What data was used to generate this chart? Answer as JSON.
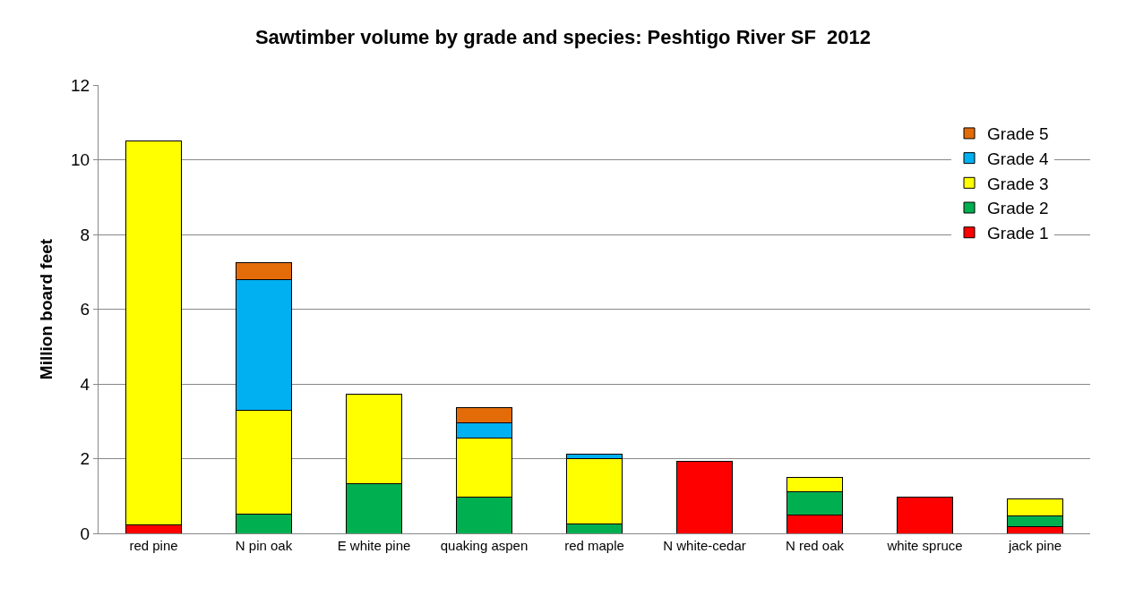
{
  "chart_data": {
    "type": "bar",
    "title": "Sawtimber volume by grade and species: Peshtigo River SF  2012",
    "ylabel": "Million board feet",
    "categories": [
      "red pine",
      "N pin oak",
      "E white pine",
      "quaking aspen",
      "red maple",
      "N white-cedar",
      "N red oak",
      "white spruce",
      "jack pine"
    ],
    "stacked": true,
    "ylim": [
      0,
      12
    ],
    "yticks": [
      0,
      2,
      4,
      6,
      8,
      10,
      12
    ],
    "grid": "y",
    "legend": "right",
    "series": [
      {
        "name": "Grade 1",
        "color": "#ff0000",
        "values": [
          0.22,
          null,
          null,
          null,
          null,
          1.92,
          0.48,
          0.97,
          0.17
        ]
      },
      {
        "name": "Grade 2",
        "color": "#00b050",
        "values": [
          null,
          0.51,
          1.33,
          0.97,
          0.24,
          null,
          0.64,
          null,
          0.29
        ]
      },
      {
        "name": "Grade 3",
        "color": "#ffff00",
        "values": [
          10.28,
          2.79,
          2.4,
          1.58,
          1.75,
          null,
          0.38,
          null,
          0.46
        ]
      },
      {
        "name": "Grade 4",
        "color": "#00b0f0",
        "values": [
          null,
          3.49,
          null,
          0.41,
          0.14,
          null,
          null,
          null,
          null
        ]
      },
      {
        "name": "Grade 5",
        "color": "#e36c09",
        "values": [
          null,
          0.46,
          null,
          0.41,
          null,
          null,
          null,
          null,
          null
        ]
      }
    ]
  }
}
